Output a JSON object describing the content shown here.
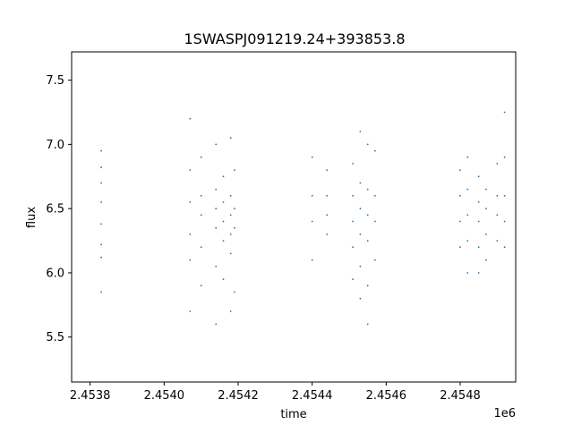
{
  "chart_data": {
    "type": "scatter",
    "title": "1SWASPJ091219.24+393853.8",
    "xlabel": "time",
    "ylabel": "flux",
    "x_offset_label": "1e6",
    "xlim": [
      2.45375,
      2.45495
    ],
    "ylim": [
      5.15,
      7.72
    ],
    "x_ticks": [
      {
        "value": 2.4538,
        "label": "2.4538"
      },
      {
        "value": 2.454,
        "label": "2.4540"
      },
      {
        "value": 2.4542,
        "label": "2.4542"
      },
      {
        "value": 2.4544,
        "label": "2.4544"
      },
      {
        "value": 2.4546,
        "label": "2.4546"
      },
      {
        "value": 2.4548,
        "label": "2.4548"
      }
    ],
    "y_ticks": [
      {
        "value": 5.5,
        "label": "5.5"
      },
      {
        "value": 6.0,
        "label": "6.0"
      },
      {
        "value": 6.5,
        "label": "6.5"
      },
      {
        "value": 7.0,
        "label": "7.0"
      },
      {
        "value": 7.5,
        "label": "7.5"
      }
    ],
    "grid": false,
    "marker_color": "#1f77b4",
    "series": [
      {
        "points": [
          [
            2.45383,
            6.82
          ],
          [
            2.45383,
            6.7
          ],
          [
            2.45383,
            6.55
          ],
          [
            2.45383,
            6.38
          ],
          [
            2.45383,
            6.22
          ],
          [
            2.45383,
            6.12
          ],
          [
            2.45383,
            6.95
          ],
          [
            2.45383,
            5.85
          ],
          [
            2.45407,
            6.55
          ],
          [
            2.45407,
            6.3
          ],
          [
            2.45407,
            6.1
          ],
          [
            2.45407,
            6.8
          ],
          [
            2.45407,
            5.7
          ],
          [
            2.45407,
            7.2
          ],
          [
            2.4541,
            6.45
          ],
          [
            2.4541,
            6.6
          ],
          [
            2.4541,
            6.2
          ],
          [
            2.4541,
            6.9
          ],
          [
            2.4541,
            5.9
          ],
          [
            2.45414,
            6.5
          ],
          [
            2.45414,
            6.35
          ],
          [
            2.45414,
            6.65
          ],
          [
            2.45414,
            6.05
          ],
          [
            2.45414,
            7.0
          ],
          [
            2.45414,
            5.6
          ],
          [
            2.45416,
            6.4
          ],
          [
            2.45416,
            6.55
          ],
          [
            2.45416,
            6.25
          ],
          [
            2.45416,
            6.75
          ],
          [
            2.45416,
            5.95
          ],
          [
            2.45418,
            6.45
          ],
          [
            2.45418,
            6.3
          ],
          [
            2.45418,
            6.6
          ],
          [
            2.45418,
            6.15
          ],
          [
            2.45418,
            7.05
          ],
          [
            2.45418,
            5.7
          ],
          [
            2.45419,
            6.5
          ],
          [
            2.45419,
            6.35
          ],
          [
            2.45419,
            6.8
          ],
          [
            2.45419,
            5.85
          ],
          [
            2.4544,
            6.6
          ],
          [
            2.4544,
            6.4
          ],
          [
            2.4544,
            6.9
          ],
          [
            2.4544,
            6.1
          ],
          [
            2.45444,
            6.45
          ],
          [
            2.45444,
            6.3
          ],
          [
            2.45444,
            6.6
          ],
          [
            2.45444,
            6.8
          ],
          [
            2.45451,
            6.4
          ],
          [
            2.45451,
            6.6
          ],
          [
            2.45451,
            6.2
          ],
          [
            2.45451,
            6.85
          ],
          [
            2.45451,
            5.95
          ],
          [
            2.45453,
            6.5
          ],
          [
            2.45453,
            6.3
          ],
          [
            2.45453,
            6.7
          ],
          [
            2.45453,
            6.05
          ],
          [
            2.45453,
            7.1
          ],
          [
            2.45453,
            5.8
          ],
          [
            2.45455,
            6.45
          ],
          [
            2.45455,
            6.25
          ],
          [
            2.45455,
            6.65
          ],
          [
            2.45455,
            5.9
          ],
          [
            2.45455,
            7.0
          ],
          [
            2.45455,
            5.6
          ],
          [
            2.45457,
            6.4
          ],
          [
            2.45457,
            6.6
          ],
          [
            2.45457,
            6.1
          ],
          [
            2.45457,
            6.95
          ],
          [
            2.4548,
            6.4
          ],
          [
            2.4548,
            6.2
          ],
          [
            2.4548,
            6.6
          ],
          [
            2.4548,
            6.8
          ],
          [
            2.45482,
            6.45
          ],
          [
            2.45482,
            6.25
          ],
          [
            2.45482,
            6.65
          ],
          [
            2.45482,
            6.0
          ],
          [
            2.45482,
            6.9
          ],
          [
            2.45485,
            6.4
          ],
          [
            2.45485,
            6.55
          ],
          [
            2.45485,
            6.2
          ],
          [
            2.45485,
            6.75
          ],
          [
            2.45485,
            6.0
          ],
          [
            2.45487,
            6.5
          ],
          [
            2.45487,
            6.3
          ],
          [
            2.45487,
            6.65
          ],
          [
            2.45487,
            6.1
          ],
          [
            2.4549,
            6.45
          ],
          [
            2.4549,
            6.25
          ],
          [
            2.4549,
            6.6
          ],
          [
            2.4549,
            6.85
          ],
          [
            2.45492,
            6.4
          ],
          [
            2.45492,
            6.6
          ],
          [
            2.45492,
            6.2
          ],
          [
            2.45492,
            6.9
          ],
          [
            2.45492,
            7.25
          ]
        ]
      }
    ]
  }
}
